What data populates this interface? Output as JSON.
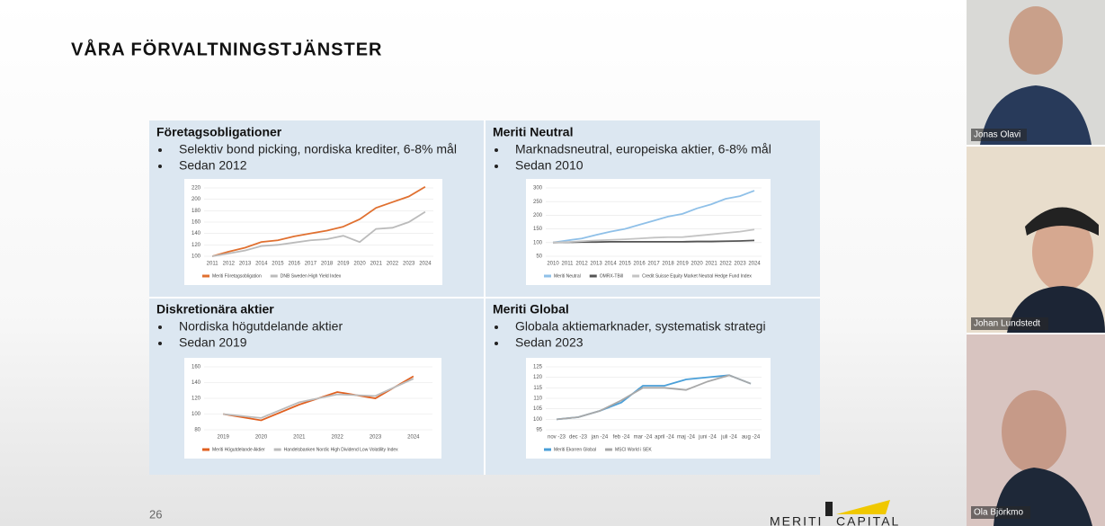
{
  "slide": {
    "title": "VÅRA FÖRVALTNINGSTJÄNSTER",
    "page_number": 26,
    "logo": [
      "MERITI",
      "CAPITAL"
    ],
    "panels": [
      {
        "heading": "Företagsobligationer",
        "bullets": [
          "Selektiv bond picking, nordiska krediter, 6-8% mål",
          "Sedan 2012"
        ],
        "chart": {
          "type": "line",
          "categories": [
            "2011",
            "2012",
            "2013",
            "2014",
            "2015",
            "2016",
            "2017",
            "2018",
            "2019",
            "2020",
            "2021",
            "2022",
            "2023",
            "2024"
          ],
          "ylim": [
            100,
            220
          ],
          "yticks": [
            100,
            120,
            140,
            160,
            180,
            200,
            220
          ],
          "series": [
            {
              "name": "Meriti Företagsobligation",
              "color": "#e07030",
              "values": [
                100,
                108,
                115,
                125,
                128,
                135,
                140,
                145,
                152,
                165,
                185,
                195,
                205,
                222
              ]
            },
            {
              "name": "DNB Sweden High Yield Index",
              "color": "#bbbbbb",
              "values": [
                100,
                105,
                110,
                118,
                120,
                124,
                128,
                130,
                136,
                125,
                148,
                150,
                160,
                178
              ]
            }
          ]
        }
      },
      {
        "heading": "Meriti Neutral",
        "bullets": [
          "Marknadsneutral, europeiska aktier, 6-8% mål",
          "Sedan 2010"
        ],
        "chart": {
          "type": "line",
          "categories": [
            "2010",
            "2011",
            "2012",
            "2013",
            "2014",
            "2015",
            "2016",
            "2017",
            "2018",
            "2019",
            "2020",
            "2021",
            "2022",
            "2023",
            "2024"
          ],
          "ylim": [
            50,
            300
          ],
          "yticks": [
            50,
            100,
            150,
            200,
            250,
            300
          ],
          "series": [
            {
              "name": "Meriti Neutral",
              "color": "#8fc0e8",
              "values": [
                100,
                108,
                115,
                128,
                140,
                150,
                165,
                180,
                195,
                205,
                225,
                240,
                260,
                270,
                290
              ]
            },
            {
              "name": "OMRX-TBill",
              "color": "#555555",
              "values": [
                100,
                101,
                102,
                102,
                103,
                103,
                103,
                103,
                103,
                103,
                104,
                104,
                105,
                106,
                108
              ]
            },
            {
              "name": "Credit Suisse Equity Market Neutral Hedge Fund Index",
              "color": "#c4c4c4",
              "values": [
                100,
                102,
                105,
                108,
                110,
                112,
                115,
                118,
                120,
                120,
                125,
                130,
                135,
                140,
                148
              ]
            }
          ]
        }
      },
      {
        "heading": "Diskretionära aktier",
        "bullets": [
          "Nordiska högutdelande aktier",
          "Sedan 2019"
        ],
        "chart": {
          "type": "line",
          "categories": [
            "2019",
            "2020",
            "2021",
            "2022",
            "2023",
            "2024"
          ],
          "ylim": [
            80,
            160
          ],
          "yticks": [
            80,
            100,
            120,
            140,
            160
          ],
          "series": [
            {
              "name": "Meriti Högutdelande Aktier",
              "color": "#e06020",
              "values": [
                100,
                92,
                112,
                128,
                120,
                148
              ]
            },
            {
              "name": "Handelsbanken Nordic High Dividend Low Volatility Index",
              "color": "#bbbbbb",
              "values": [
                100,
                95,
                115,
                125,
                123,
                145
              ]
            }
          ]
        }
      },
      {
        "heading": "Meriti Global",
        "bullets": [
          "Globala aktiemarknader, systematisk strategi",
          "Sedan 2023"
        ],
        "chart": {
          "type": "line",
          "categories": [
            "nov -23",
            "dec -23",
            "jan -24",
            "feb -24",
            "mar -24",
            "april -24",
            "maj -24",
            "juni -24",
            "juli -24",
            "aug -24"
          ],
          "ylim": [
            95,
            125
          ],
          "yticks": [
            95,
            100,
            105,
            110,
            115,
            120,
            125
          ],
          "series": [
            {
              "name": "Meriti Ekorren Global",
              "color": "#4a9fd8",
              "values": [
                100,
                101,
                104,
                108,
                116,
                116,
                119,
                120,
                121,
                117
              ]
            },
            {
              "name": "MSCI World i SEK",
              "color": "#a8a8a8",
              "values": [
                100,
                101,
                104,
                109,
                115,
                115,
                114,
                118,
                121,
                117
              ]
            }
          ]
        }
      }
    ]
  },
  "participants": [
    {
      "name": "Jonas Olavi"
    },
    {
      "name": "Johan Lundstedt"
    },
    {
      "name": "Ola Björkmo"
    }
  ]
}
